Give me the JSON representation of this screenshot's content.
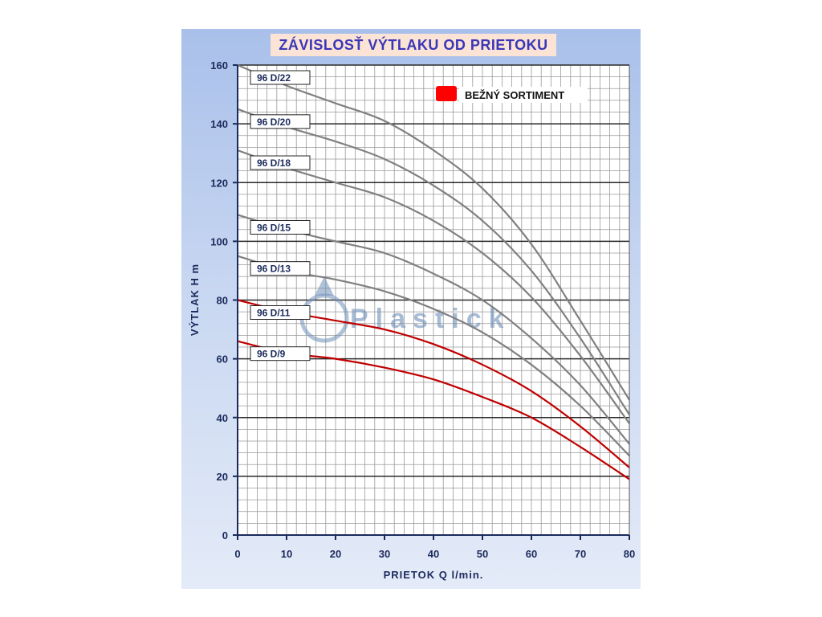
{
  "chart_data": {
    "type": "line",
    "title": "ZÁVISLOSŤ VÝTLAKU OD PRIETOKU",
    "xlabel": "PRIETOK Q l/min.",
    "ylabel": "VÝTLAK H m",
    "xlim": [
      0,
      80
    ],
    "ylim": [
      0,
      160
    ],
    "xticks": [
      0,
      10,
      20,
      30,
      40,
      50,
      60,
      70,
      80
    ],
    "yticks": [
      0,
      20,
      40,
      60,
      80,
      100,
      120,
      140,
      160
    ],
    "grid": true,
    "legend": {
      "position": "top-right",
      "label": "BEŽNÝ SORTIMENT",
      "color": "#ff0000"
    },
    "watermark": "Plastick",
    "series": [
      {
        "name": "96 D/22",
        "color": "#808080",
        "x": [
          0,
          10,
          20,
          30,
          40,
          50,
          60,
          70,
          80
        ],
        "y": [
          160,
          153,
          147,
          141,
          131,
          118,
          99,
          73,
          46
        ]
      },
      {
        "name": "96 D/20",
        "color": "#808080",
        "x": [
          0,
          10,
          20,
          30,
          40,
          50,
          60,
          70,
          80
        ],
        "y": [
          145,
          139,
          134,
          128,
          119,
          107,
          90,
          67,
          41
        ]
      },
      {
        "name": "96 D/18",
        "color": "#808080",
        "x": [
          0,
          10,
          20,
          30,
          40,
          50,
          60,
          70,
          80
        ],
        "y": [
          131,
          125,
          120,
          115,
          107,
          96,
          81,
          61,
          38
        ]
      },
      {
        "name": "96 D/15",
        "color": "#808080",
        "x": [
          0,
          10,
          20,
          30,
          40,
          50,
          60,
          70,
          80
        ],
        "y": [
          109,
          104,
          100,
          96,
          89,
          80,
          67,
          51,
          31
        ]
      },
      {
        "name": "96 D/13",
        "color": "#808080",
        "x": [
          0,
          10,
          20,
          30,
          40,
          50,
          60,
          70,
          80
        ],
        "y": [
          95,
          90,
          87,
          83,
          77,
          69,
          58,
          44,
          27
        ]
      },
      {
        "name": "96 D/11",
        "color": "#c00000",
        "x": [
          0,
          10,
          20,
          30,
          40,
          50,
          60,
          70,
          80
        ],
        "y": [
          80,
          76,
          73,
          70,
          65,
          58,
          49,
          37,
          23
        ]
      },
      {
        "name": "96 D/9",
        "color": "#c00000",
        "x": [
          0,
          10,
          20,
          30,
          40,
          50,
          60,
          70,
          80
        ],
        "y": [
          66,
          62,
          60,
          57,
          53,
          47,
          40,
          30,
          19
        ]
      }
    ]
  }
}
